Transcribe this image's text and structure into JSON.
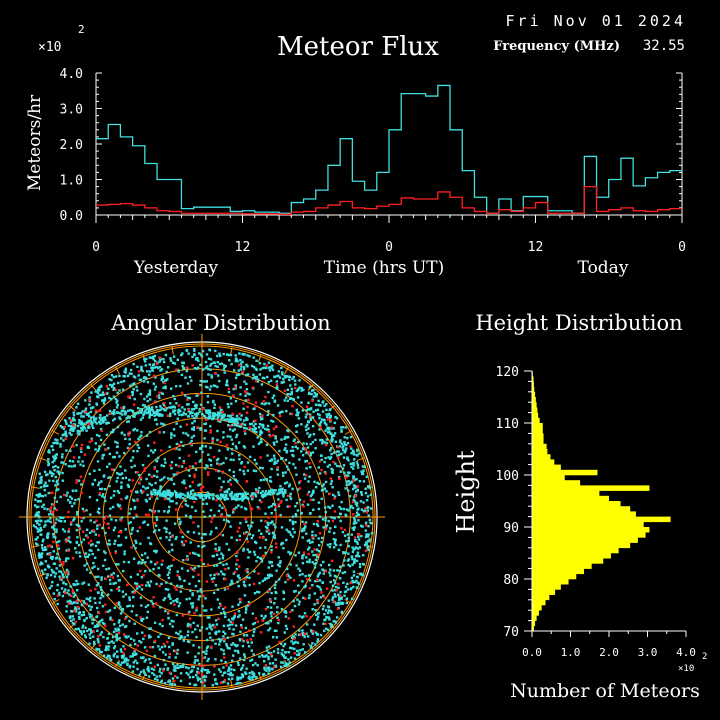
{
  "header": {
    "date": "Fri Nov 01 2024",
    "frequency_label": "Frequency (MHz)",
    "frequency_value": "32.55",
    "exponent_prefix": "×10",
    "exponent_power": "2"
  },
  "colors": {
    "background": "#000000",
    "axis": "#ffffff",
    "series_total": "#40e0e0",
    "series_red": "#ff2020",
    "height_bars": "#ffff00",
    "polar_grid": "#ff9900"
  },
  "chart_data": [
    {
      "type": "line",
      "title": "Meteor Flux",
      "ylabel": "Meteors/hr",
      "xlabel": "Time (hrs UT)",
      "y_multiplier": "×10^2",
      "ylim": [
        0,
        4
      ],
      "yticks": [
        "0.0",
        "1.0",
        "2.0",
        "3.0",
        "4.0"
      ],
      "xlim": [
        0,
        48
      ],
      "xticks": [
        "0",
        "12",
        "0",
        "12",
        "0"
      ],
      "section_labels": [
        "Yesterday",
        "Today"
      ],
      "series": [
        {
          "color": "cyan",
          "values": [
            2.15,
            2.55,
            2.2,
            1.95,
            1.45,
            1.0,
            1.0,
            0.18,
            0.22,
            0.22,
            0.22,
            0.1,
            0.12,
            0.08,
            0.08,
            0.05,
            0.35,
            0.45,
            0.7,
            1.4,
            2.15,
            0.95,
            0.7,
            1.2,
            2.4,
            3.42,
            3.42,
            3.35,
            3.65,
            2.4,
            1.25,
            0.5,
            0.05,
            0.45,
            0.12,
            0.52,
            0.52,
            0.12,
            0.12,
            0.05,
            1.65,
            0.5,
            1.0,
            1.6,
            0.82,
            1.05,
            1.2,
            1.25
          ]
        },
        {
          "color": "red",
          "values": [
            0.28,
            0.3,
            0.32,
            0.28,
            0.2,
            0.12,
            0.1,
            0.05,
            0.05,
            0.05,
            0.05,
            0.05,
            0.03,
            0.03,
            0.03,
            0.02,
            0.08,
            0.1,
            0.2,
            0.28,
            0.38,
            0.2,
            0.18,
            0.25,
            0.3,
            0.48,
            0.45,
            0.45,
            0.65,
            0.5,
            0.2,
            0.1,
            0.05,
            0.15,
            0.1,
            0.2,
            0.35,
            0.05,
            0.05,
            0.05,
            0.8,
            0.1,
            0.15,
            0.2,
            0.12,
            0.1,
            0.15,
            0.18
          ]
        }
      ]
    },
    {
      "type": "scatter",
      "title": "Angular Distribution",
      "grid": "polar",
      "rings": 7,
      "radial_lines": 36,
      "series": [
        {
          "color": "cyan",
          "dense_areas": [
            "outer rim",
            "upper-left arc",
            "center arc"
          ]
        },
        {
          "color": "red"
        }
      ]
    },
    {
      "type": "bar",
      "orientation": "horizontal",
      "title": "Height Distribution",
      "ylabel": "Height",
      "xlabel": "Number of Meteors",
      "x_multiplier": "×10^2",
      "xlim": [
        0,
        4
      ],
      "xticks": [
        "0.0",
        "1.0",
        "2.0",
        "3.0",
        "4.0"
      ],
      "ylim": [
        70,
        120
      ],
      "yticks": [
        "70",
        "80",
        "90",
        "100",
        "110",
        "120"
      ],
      "heights": [
        70,
        71,
        72,
        73,
        74,
        75,
        76,
        77,
        78,
        79,
        80,
        81,
        82,
        83,
        84,
        85,
        86,
        87,
        88,
        89,
        90,
        91,
        92,
        93,
        94,
        95,
        96,
        97,
        98,
        99,
        100,
        101,
        102,
        103,
        104,
        105,
        106,
        107,
        108,
        109,
        110,
        111,
        112,
        113,
        114,
        115,
        116,
        117,
        118,
        119
      ],
      "values": [
        0.05,
        0.08,
        0.12,
        0.18,
        0.25,
        0.35,
        0.45,
        0.6,
        0.75,
        0.95,
        1.15,
        1.35,
        1.55,
        1.85,
        2.05,
        2.25,
        2.55,
        2.75,
        2.95,
        3.05,
        2.9,
        3.6,
        2.7,
        2.55,
        2.3,
        2.0,
        1.75,
        3.05,
        1.25,
        0.85,
        1.7,
        0.75,
        0.58,
        0.48,
        0.4,
        0.38,
        0.3,
        0.3,
        0.28,
        0.28,
        0.2,
        0.16,
        0.14,
        0.12,
        0.1,
        0.08,
        0.06,
        0.05,
        0.04,
        0.02
      ]
    }
  ]
}
